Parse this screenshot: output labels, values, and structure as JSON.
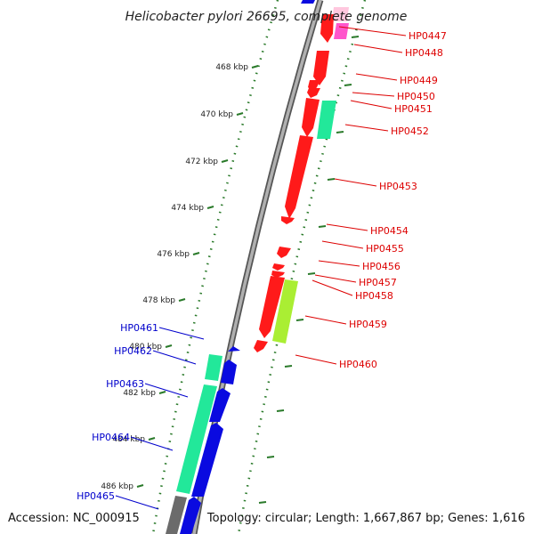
{
  "title": "Helicobacter pylori 26695, complete genome",
  "footer": {
    "accession": "Accession: NC_000915",
    "summary": "Topology: circular; Length: 1,667,867 bp; Genes: 1,616"
  },
  "colors": {
    "forward_label": "#dd0000",
    "reverse_label": "#0000cc",
    "tick": "#2a7a2a",
    "backbone": "#8a8a8a"
  },
  "scale_labels": [
    "468 kbp",
    "470 kbp",
    "472 kbp",
    "474 kbp",
    "476 kbp",
    "478 kbp",
    "480 kbp",
    "482 kbp",
    "484 kbp",
    "486 kbp"
  ],
  "forward_genes": [
    {
      "name": "HP0447",
      "color": "#ff1a1a"
    },
    {
      "name": "HP0448",
      "color": "#ff1a1a"
    },
    {
      "name": "HP0449",
      "color": "#ff1a1a"
    },
    {
      "name": "HP0450",
      "color": "#ff1a1a"
    },
    {
      "name": "HP0451",
      "color": "#ff1a1a"
    },
    {
      "name": "HP0452",
      "color": "#ff1a1a"
    },
    {
      "name": "HP0453",
      "color": "#ff1a1a"
    },
    {
      "name": "HP0454",
      "color": "#ff1a1a"
    },
    {
      "name": "HP0455",
      "color": "#ff1a1a"
    },
    {
      "name": "HP0456",
      "color": "#ff1a1a"
    },
    {
      "name": "HP0457",
      "color": "#ff1a1a"
    },
    {
      "name": "HP0458",
      "color": "#ff1a1a"
    },
    {
      "name": "HP0459",
      "color": "#ff1a1a"
    },
    {
      "name": "HP0460",
      "color": "#ff1a1a"
    }
  ],
  "reverse_genes": [
    {
      "name": "HP0461",
      "color": "#0a0ae0"
    },
    {
      "name": "HP0462",
      "color": "#0a0ae0"
    },
    {
      "name": "HP0463",
      "color": "#0a0ae0"
    },
    {
      "name": "HP0464",
      "color": "#0a0ae0"
    },
    {
      "name": "HP0465",
      "color": "#0a0ae0"
    }
  ],
  "feature_colors": {
    "teal": "#22e89a",
    "pink": "#ff55cc",
    "lime": "#aaee33"
  }
}
